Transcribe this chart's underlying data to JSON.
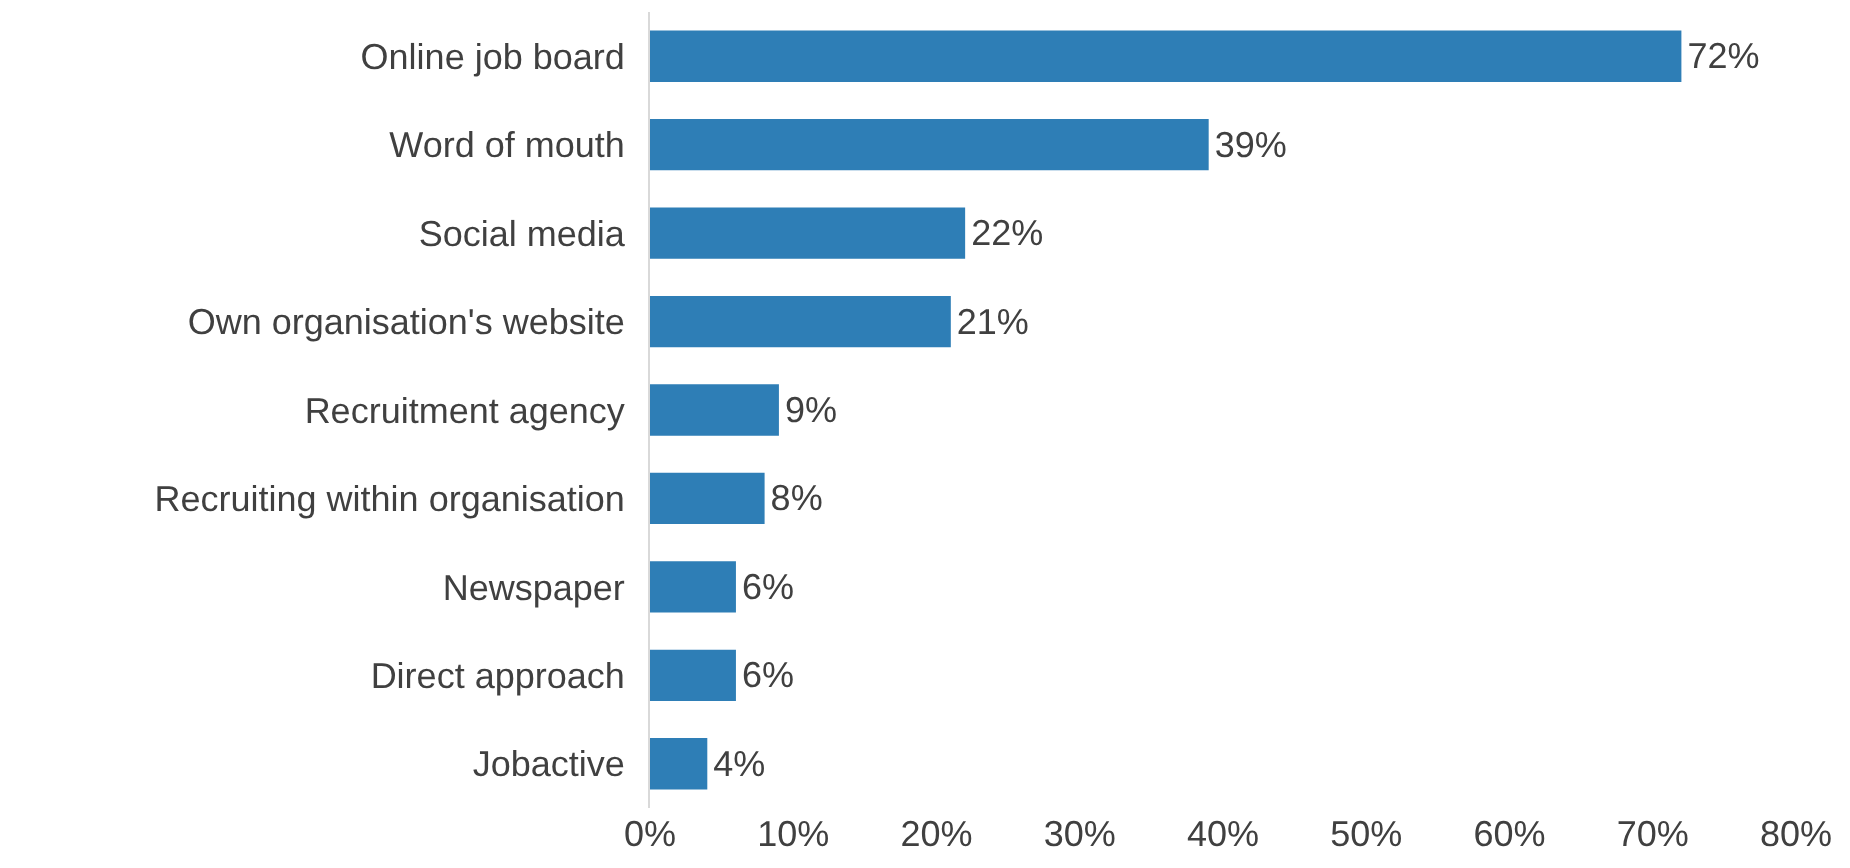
{
  "chart_data": {
    "type": "bar",
    "orientation": "horizontal",
    "categories": [
      "Online job board",
      "Word of mouth",
      "Social media",
      "Own organisation's website",
      "Recruitment agency",
      "Recruiting within organisation",
      "Newspaper",
      "Direct approach",
      "Jobactive"
    ],
    "values": [
      72,
      39,
      22,
      21,
      9,
      8,
      6,
      6,
      4
    ],
    "value_labels": [
      "72%",
      "39%",
      "22%",
      "21%",
      "9%",
      "8%",
      "6%",
      "6%",
      "4%"
    ],
    "color": "#2e7eb6",
    "xlim": [
      0,
      80
    ],
    "xticks": [
      {
        "value": 0,
        "label": "0%"
      },
      {
        "value": 10,
        "label": "10%"
      },
      {
        "value": 20,
        "label": "20%"
      },
      {
        "value": 30,
        "label": "30%"
      },
      {
        "value": 40,
        "label": "40%"
      },
      {
        "value": 50,
        "label": "50%"
      },
      {
        "value": 60,
        "label": "60%"
      },
      {
        "value": 70,
        "label": "70%"
      },
      {
        "value": 80,
        "label": "80%"
      }
    ],
    "grid": false
  }
}
